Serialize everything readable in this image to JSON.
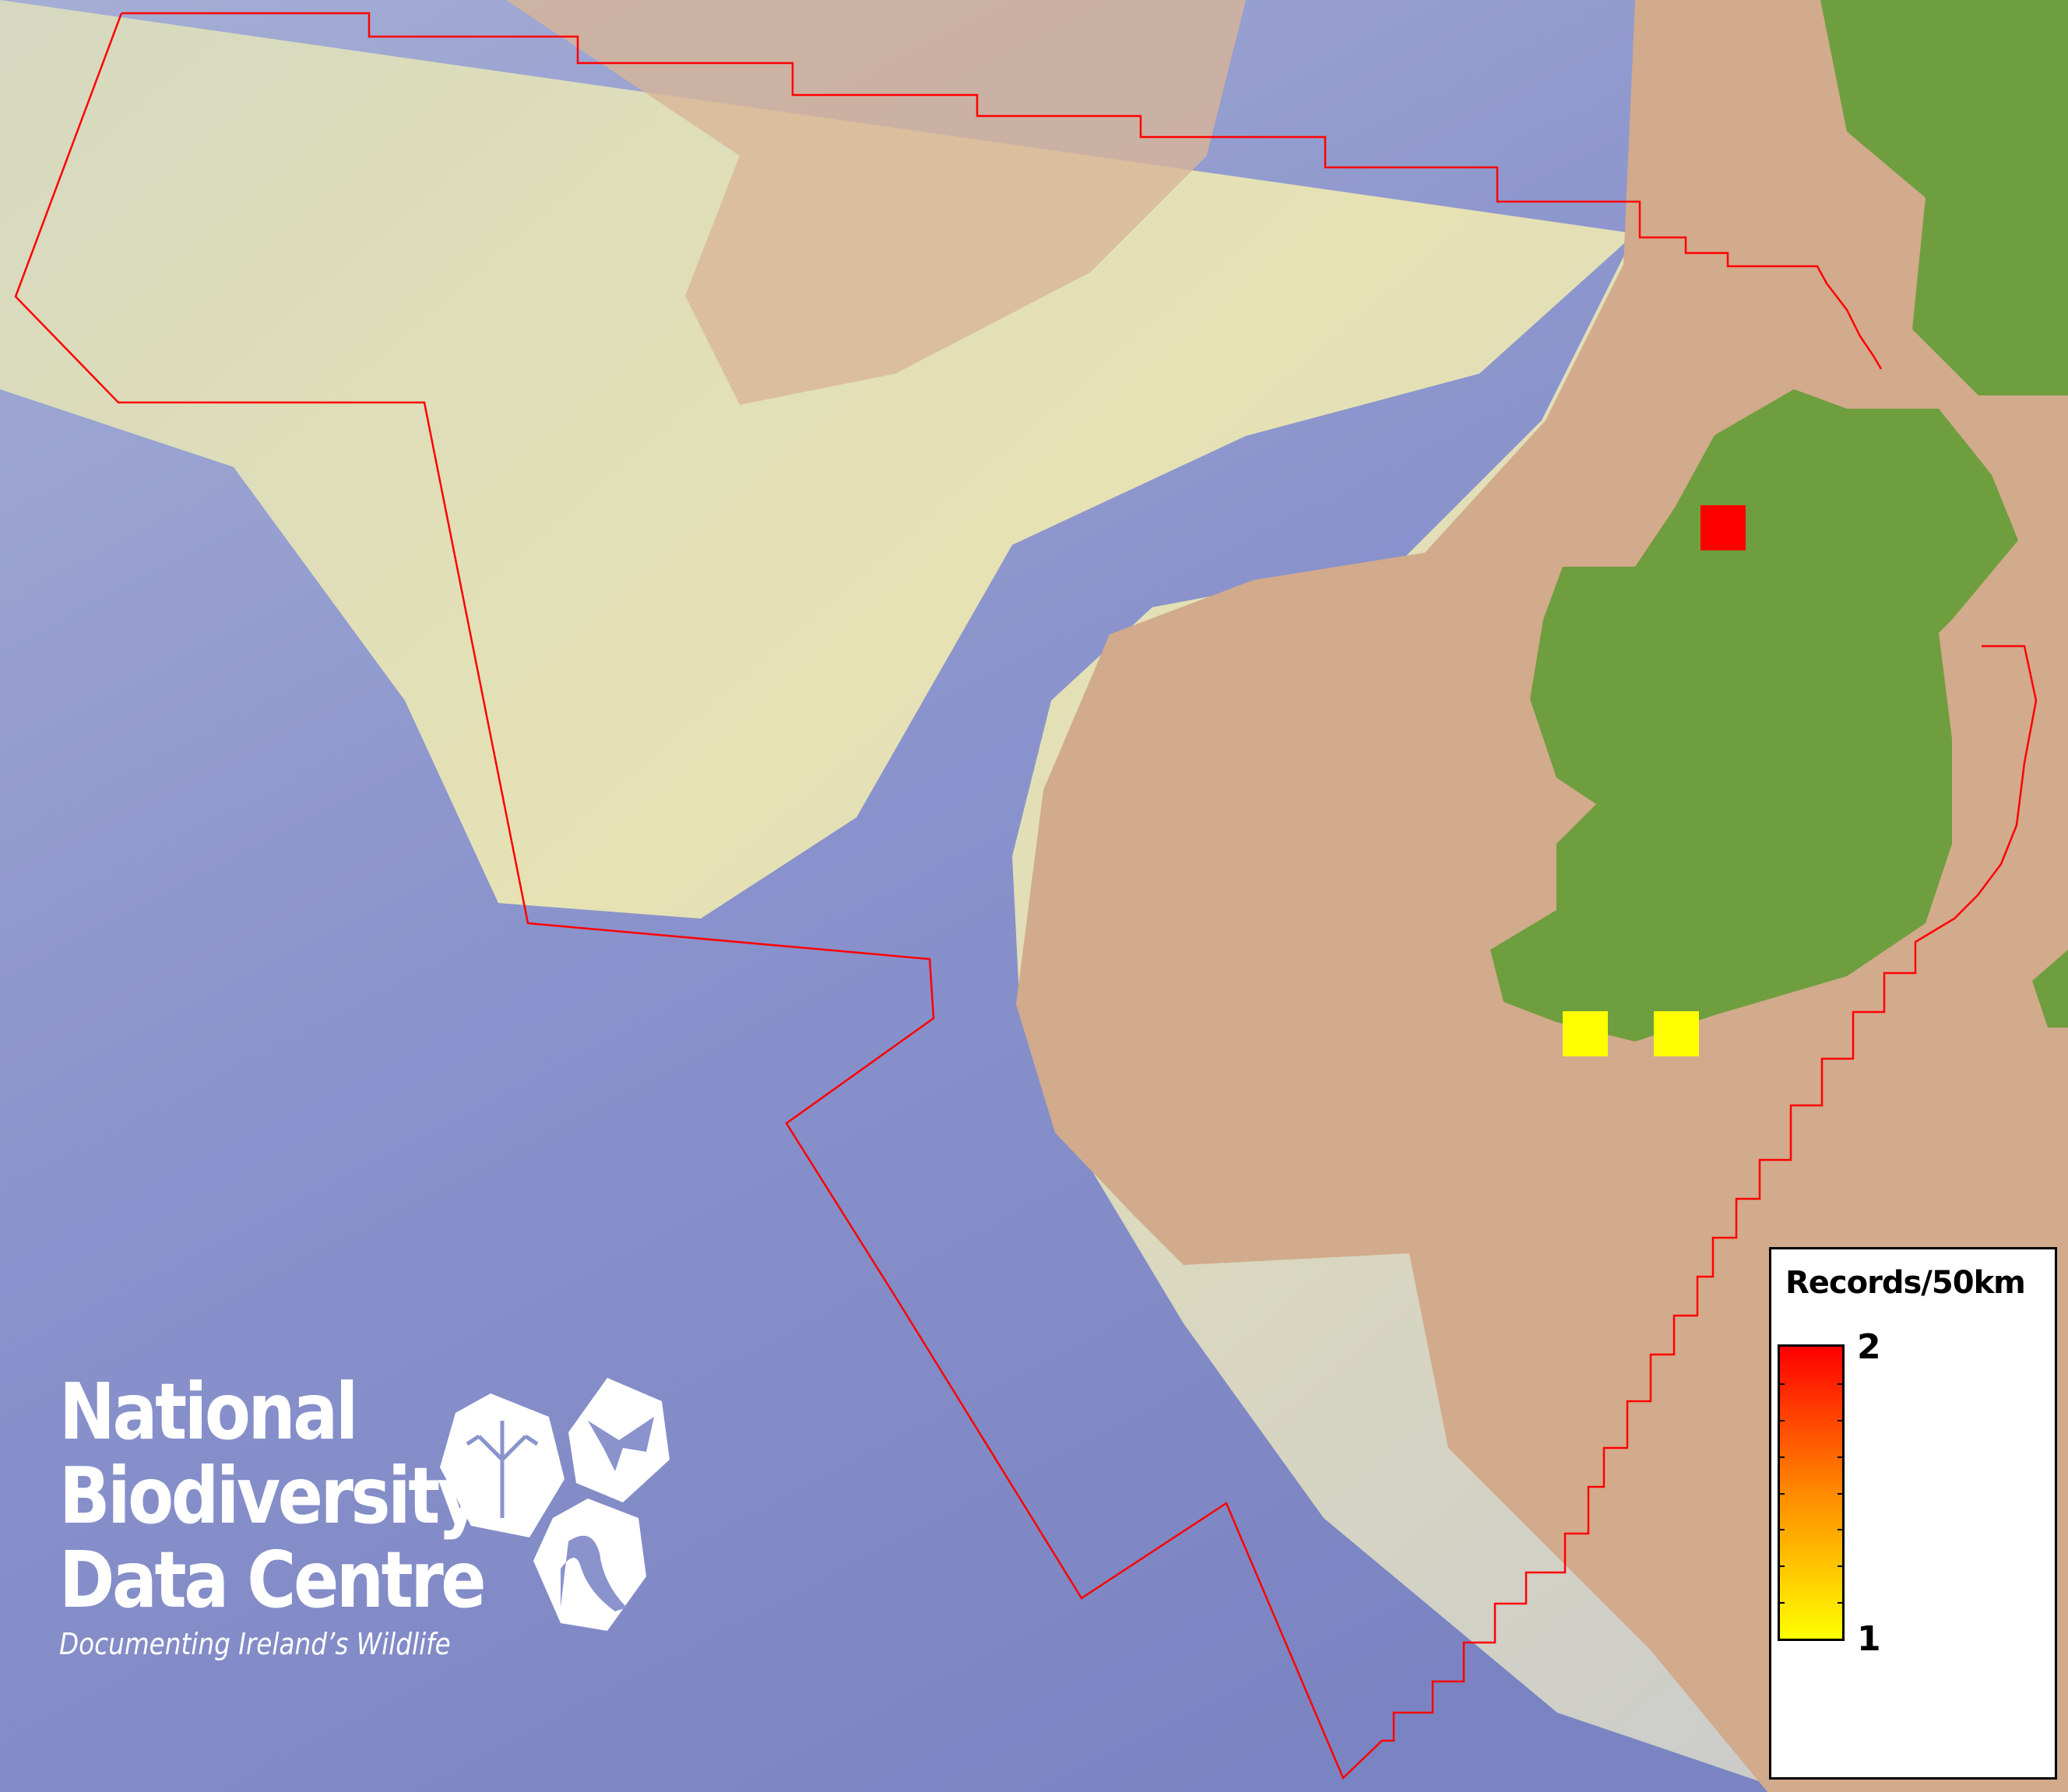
{
  "legend": {
    "title": "Records/50km",
    "max_label": "2",
    "min_label": "1",
    "min_value": 1,
    "max_value": 2,
    "color_low": "#ffff00",
    "color_mid": "#ff8a00",
    "color_high": "#ff0000"
  },
  "records": [
    {
      "records": 2,
      "color": "#ff0000"
    },
    {
      "records": 1,
      "color": "#ffff00"
    },
    {
      "records": 1,
      "color": "#ffff00"
    }
  ],
  "logo": {
    "line1": "National",
    "line2": "Biodiversity",
    "line3": "Data Centre",
    "tagline": "Documenting Ireland’s Wildlife"
  },
  "colors": {
    "deep_ocean": "#7f88c6",
    "shelf": "#d2aa8c",
    "plateau": "#e2e0b4",
    "land": "#6f9e3e",
    "boundary": "#ff0000"
  }
}
